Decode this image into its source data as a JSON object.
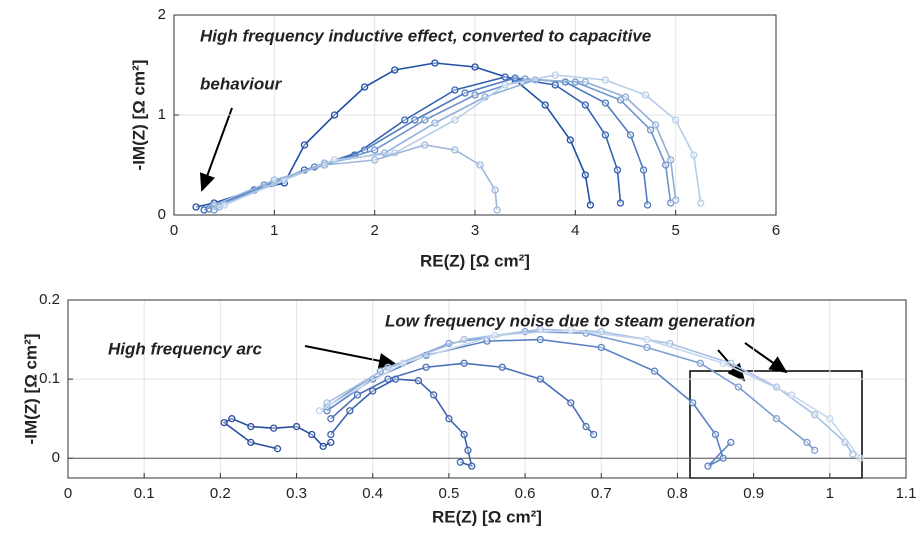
{
  "chart_data": [
    {
      "type": "line",
      "xlabel": "RE(Z) [Ω cm²]",
      "ylabel": "-IM(Z) [Ω cm²]",
      "annotations": [
        "High frequency inductive effect, converted to capacitive",
        "behaviour"
      ],
      "xlim": [
        0,
        6
      ],
      "xticks": [
        0,
        1,
        2,
        3,
        4,
        5,
        6
      ],
      "ylim": [
        0,
        2
      ],
      "yticks": [
        0,
        1,
        2
      ],
      "grid": true,
      "zero_line": false,
      "series": [
        {
          "color": "#1f4fa6",
          "x": [
            0.22,
            0.4,
            0.8,
            1.1,
            1.3,
            1.6,
            1.9,
            2.2,
            2.6,
            3.0,
            3.4,
            3.7,
            3.95,
            4.1,
            4.15
          ],
          "values": [
            0.08,
            0.12,
            0.25,
            0.32,
            0.7,
            1.0,
            1.28,
            1.45,
            1.52,
            1.48,
            1.35,
            1.1,
            0.75,
            0.4,
            0.1
          ]
        },
        {
          "color": "#3463b0",
          "x": [
            0.3,
            0.8,
            1.3,
            1.8,
            2.3,
            2.8,
            3.3,
            3.8,
            4.1,
            4.3,
            4.42,
            4.45
          ],
          "values": [
            0.05,
            0.25,
            0.45,
            0.6,
            0.95,
            1.25,
            1.38,
            1.3,
            1.1,
            0.8,
            0.45,
            0.12
          ]
        },
        {
          "color": "#4f7cc0",
          "x": [
            0.35,
            0.9,
            1.4,
            1.9,
            2.4,
            2.9,
            3.4,
            3.9,
            4.3,
            4.55,
            4.68,
            4.72
          ],
          "values": [
            0.06,
            0.3,
            0.48,
            0.65,
            0.95,
            1.22,
            1.37,
            1.33,
            1.12,
            0.8,
            0.45,
            0.1
          ]
        },
        {
          "color": "#6e94cc",
          "x": [
            0.4,
            0.9,
            1.5,
            2.0,
            2.5,
            3.0,
            3.5,
            4.0,
            4.45,
            4.75,
            4.9,
            4.95
          ],
          "values": [
            0.05,
            0.3,
            0.5,
            0.65,
            0.95,
            1.2,
            1.36,
            1.33,
            1.15,
            0.85,
            0.5,
            0.12
          ]
        },
        {
          "color": "#8fb0da",
          "x": [
            0.45,
            1.0,
            1.5,
            2.1,
            2.6,
            3.1,
            3.6,
            4.1,
            4.5,
            4.8,
            4.95,
            5.0
          ],
          "values": [
            0.08,
            0.32,
            0.52,
            0.62,
            0.92,
            1.18,
            1.35,
            1.33,
            1.18,
            0.9,
            0.55,
            0.15
          ]
        },
        {
          "color": "#b6cde8",
          "x": [
            0.5,
            1.1,
            1.6,
            2.2,
            2.8,
            3.3,
            3.8,
            4.3,
            4.7,
            5.0,
            5.18,
            5.25
          ],
          "values": [
            0.1,
            0.35,
            0.55,
            0.62,
            0.95,
            1.3,
            1.4,
            1.35,
            1.2,
            0.95,
            0.6,
            0.12
          ]
        },
        {
          "color": "#9db8dc",
          "x": [
            0.4,
            1.0,
            1.5,
            2.0,
            2.5,
            2.8,
            3.05,
            3.2,
            3.22
          ],
          "values": [
            0.1,
            0.35,
            0.5,
            0.55,
            0.7,
            0.65,
            0.5,
            0.25,
            0.05
          ]
        }
      ]
    },
    {
      "type": "line",
      "xlabel": "RE(Z) [Ω cm²]",
      "ylabel": "-IM(Z) [Ω cm²]",
      "annotations": [
        "High frequency arc",
        "Low frequency noise due to steam generation"
      ],
      "xlim": [
        0,
        1.1
      ],
      "xticks": [
        0,
        0.1,
        0.2,
        0.3,
        0.4,
        0.5,
        0.6,
        0.7,
        0.8,
        0.9,
        1,
        1.1
      ],
      "ylim": [
        -0.025,
        0.2
      ],
      "yticks": [
        0,
        0.1,
        0.2
      ],
      "grid": true,
      "zero_line": true,
      "series": [
        {
          "color": "#2a4f9e",
          "x": [
            0.275,
            0.24,
            0.205,
            0.215,
            0.24,
            0.27,
            0.3,
            0.32,
            0.335,
            0.345
          ],
          "values": [
            0.012,
            0.02,
            0.045,
            0.05,
            0.04,
            0.038,
            0.04,
            0.03,
            0.015,
            0.02
          ]
        },
        {
          "color": "#3d63ae",
          "x": [
            0.345,
            0.37,
            0.4,
            0.43,
            0.46,
            0.48,
            0.5,
            0.52,
            0.525,
            0.53,
            0.515
          ],
          "values": [
            0.03,
            0.06,
            0.085,
            0.1,
            0.098,
            0.08,
            0.05,
            0.03,
            0.01,
            -0.01,
            -0.005
          ]
        },
        {
          "color": "#4a6fb8",
          "x": [
            0.345,
            0.38,
            0.42,
            0.47,
            0.52,
            0.57,
            0.62,
            0.66,
            0.68,
            0.69
          ],
          "values": [
            0.05,
            0.08,
            0.1,
            0.115,
            0.12,
            0.115,
            0.1,
            0.07,
            0.04,
            0.03
          ]
        },
        {
          "color": "#5a82c4",
          "x": [
            0.34,
            0.4,
            0.47,
            0.55,
            0.62,
            0.7,
            0.77,
            0.82,
            0.85,
            0.86,
            0.84,
            0.87
          ],
          "values": [
            0.06,
            0.1,
            0.13,
            0.148,
            0.15,
            0.14,
            0.11,
            0.07,
            0.03,
            0.0,
            -0.01,
            0.02
          ]
        },
        {
          "color": "#7d9fd3",
          "x": [
            0.34,
            0.41,
            0.5,
            0.6,
            0.68,
            0.76,
            0.83,
            0.88,
            0.93,
            0.97,
            0.98
          ],
          "values": [
            0.065,
            0.11,
            0.145,
            0.16,
            0.158,
            0.14,
            0.12,
            0.09,
            0.05,
            0.02,
            0.01
          ]
        },
        {
          "color": "#a6c0e2",
          "x": [
            0.34,
            0.42,
            0.52,
            0.62,
            0.7,
            0.79,
            0.87,
            0.93,
            0.98,
            1.02,
            1.03
          ],
          "values": [
            0.07,
            0.115,
            0.15,
            0.163,
            0.16,
            0.145,
            0.12,
            0.09,
            0.055,
            0.02,
            0.005
          ]
        },
        {
          "color": "#c5d6ec",
          "x": [
            0.33,
            0.44,
            0.56,
            0.66,
            0.76,
            0.86,
            0.95,
            1.0,
            1.04
          ],
          "values": [
            0.06,
            0.12,
            0.155,
            0.162,
            0.15,
            0.12,
            0.08,
            0.05,
            0.0
          ]
        }
      ]
    }
  ]
}
